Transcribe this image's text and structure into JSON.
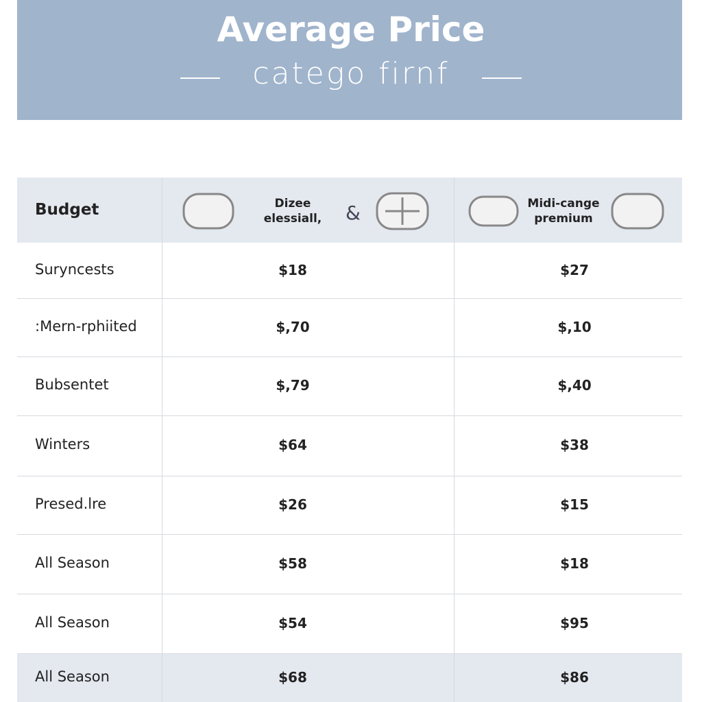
{
  "header": {
    "title": "Average Price",
    "subtitle": "catego firnf"
  },
  "table": {
    "columns": [
      "Budget",
      "Dizee elessiall,",
      "&",
      "Midi-cange premium"
    ],
    "rows": [
      [
        "Suryncests",
        "$18",
        "$27"
      ],
      [
        ":Mern-rphiited",
        "$,70",
        "$,10"
      ],
      [
        "Bubsentet",
        "$,79",
        "$,40"
      ],
      [
        "Winters",
        "$64",
        "$38"
      ],
      [
        "Presed.lre",
        "$26",
        "$15"
      ],
      [
        "All Season",
        "$58",
        "$18"
      ],
      [
        "All Season",
        "$54",
        "$95"
      ],
      [
        "All Season",
        "$68",
        "$86"
      ]
    ]
  }
}
